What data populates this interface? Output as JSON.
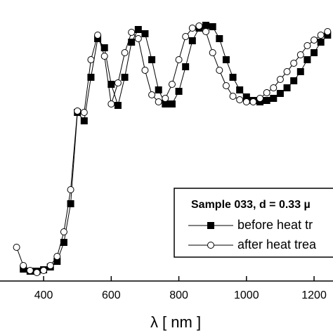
{
  "chart_data": {
    "type": "line",
    "x_label": "λ [ nm ]",
    "xlim": [
      271,
      1256
    ],
    "xticks": [
      400,
      600,
      800,
      1000,
      1200
    ],
    "ylim": [
      0,
      400
    ],
    "legend_title": "Sample 033, d = 0.33 µ",
    "series": [
      {
        "name": "before heat tr",
        "color": "#000000",
        "marker": "square-filled",
        "x": [
          340,
          360,
          380,
          400,
          420,
          440,
          460,
          480,
          500,
          520,
          540,
          560,
          580,
          600,
          620,
          640,
          660,
          680,
          700,
          720,
          740,
          760,
          780,
          800,
          820,
          840,
          860,
          880,
          900,
          920,
          940,
          960,
          980,
          1000,
          1020,
          1040,
          1060,
          1080,
          1100,
          1120,
          1140,
          1160,
          1180,
          1200,
          1220,
          1240
        ],
        "values": [
          17,
          14,
          14,
          16,
          20,
          28,
          55,
          110,
          240,
          228,
          290,
          345,
          332,
          280,
          250,
          290,
          340,
          358,
          352,
          315,
          272,
          252,
          252,
          270,
          305,
          342,
          360,
          364,
          362,
          345,
          315,
          290,
          272,
          262,
          257,
          255,
          257,
          260,
          267,
          275,
          285,
          298,
          315,
          325,
          340,
          350
        ]
      },
      {
        "name": "after heat trea",
        "color": "#000000",
        "marker": "circle-open",
        "x": [
          320,
          340,
          360,
          380,
          400,
          420,
          440,
          460,
          480,
          500,
          520,
          540,
          560,
          580,
          600,
          620,
          640,
          660,
          680,
          700,
          720,
          740,
          760,
          780,
          800,
          820,
          840,
          860,
          880,
          900,
          920,
          940,
          960,
          980,
          1000,
          1020,
          1040,
          1060,
          1080,
          1100,
          1120,
          1140,
          1160,
          1180,
          1200,
          1220,
          1240
        ],
        "values": [
          48,
          22,
          15,
          12,
          15,
          22,
          35,
          70,
          130,
          242,
          240,
          315,
          350,
          320,
          252,
          282,
          325,
          354,
          345,
          300,
          265,
          255,
          260,
          280,
          315,
          348,
          360,
          363,
          355,
          325,
          300,
          278,
          263,
          258,
          255,
          255,
          260,
          268,
          275,
          287,
          298,
          310,
          322,
          335,
          343,
          350,
          355
        ]
      }
    ]
  }
}
